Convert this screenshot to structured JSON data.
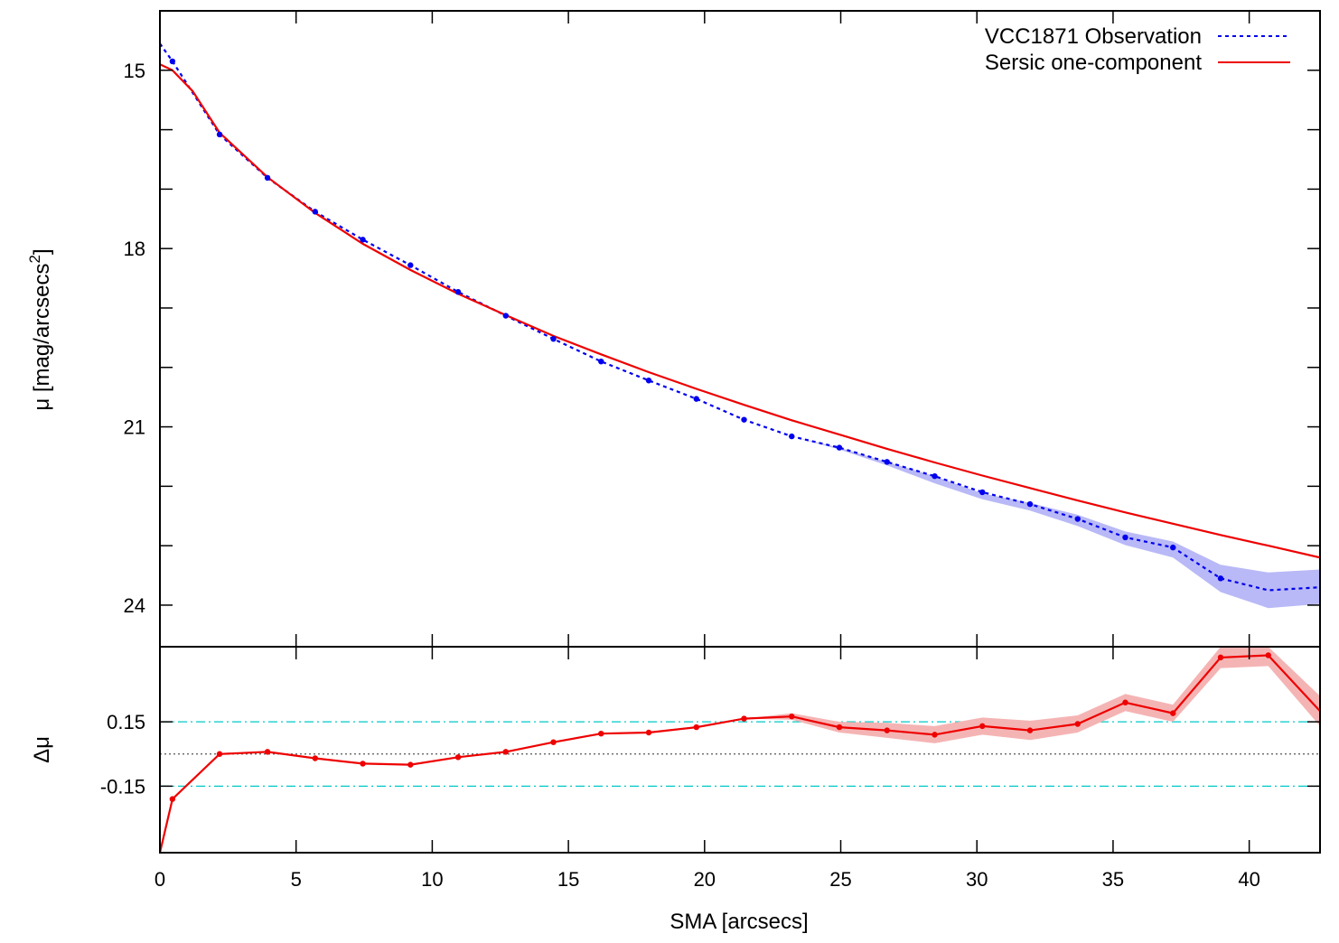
{
  "chart_data": [
    {
      "type": "line",
      "panel": "top",
      "ylabel": "μ [mag/arcsecs",
      "ylabel_sup": "2",
      "ylabel_tail": "]",
      "ylim": [
        24.7,
        14.0
      ],
      "y_inverted": true,
      "xlim": [
        0,
        42.6
      ],
      "yticks_labeled": [
        "15",
        "18",
        "21",
        "24"
      ],
      "ytick_values_labeled": [
        15,
        18,
        21,
        24
      ],
      "ytick_values_minor": [
        16,
        17,
        19,
        20,
        22,
        23
      ],
      "legend_position": "top-right",
      "series": [
        {
          "name": "VCC1871 Observation",
          "style": "dotted",
          "color": "#0000ee",
          "band_color": "#b9b9f7",
          "x": [
            0,
            0.46,
            2.19,
            3.95,
            5.7,
            7.45,
            9.2,
            10.95,
            12.7,
            14.45,
            16.2,
            17.95,
            19.7,
            21.45,
            23.2,
            24.95,
            26.7,
            28.45,
            30.2,
            31.95,
            33.7,
            35.45,
            37.2,
            38.95,
            40.7,
            42.6
          ],
          "values": [
            14.55,
            14.85,
            16.08,
            16.81,
            17.38,
            17.85,
            18.28,
            18.73,
            19.13,
            19.52,
            19.9,
            20.22,
            20.53,
            20.88,
            21.16,
            21.35,
            21.59,
            21.83,
            22.1,
            22.3,
            22.55,
            22.86,
            23.03,
            23.55,
            23.75,
            23.7
          ],
          "band_low": [
            14.55,
            14.85,
            16.08,
            16.81,
            17.38,
            17.85,
            18.28,
            18.73,
            19.13,
            19.52,
            19.9,
            20.22,
            20.53,
            20.88,
            21.16,
            21.35,
            21.59,
            21.83,
            22.12,
            22.28,
            22.48,
            22.76,
            22.93,
            23.32,
            23.45,
            23.4
          ],
          "band_high": [
            14.55,
            14.85,
            16.08,
            16.81,
            17.38,
            17.85,
            18.28,
            18.73,
            19.13,
            19.52,
            19.9,
            20.22,
            20.53,
            20.88,
            21.16,
            21.38,
            21.65,
            21.95,
            22.22,
            22.41,
            22.67,
            22.99,
            23.2,
            23.78,
            24.05,
            23.98
          ],
          "markers": true
        },
        {
          "name": "Sersic one-component",
          "style": "solid",
          "color": "#ee0000",
          "x": [
            0,
            0.46,
            1.2,
            2.19,
            3.95,
            5.7,
            7.45,
            9.2,
            10.95,
            12.7,
            14.45,
            16.2,
            17.95,
            19.7,
            21.45,
            23.2,
            24.95,
            26.7,
            28.45,
            30.2,
            31.95,
            33.7,
            35.45,
            37.2,
            38.95,
            40.7,
            42.6
          ],
          "values": [
            14.9,
            15.0,
            15.35,
            16.05,
            16.8,
            17.4,
            17.92,
            18.36,
            18.76,
            19.12,
            19.47,
            19.78,
            20.08,
            20.36,
            20.63,
            20.89,
            21.13,
            21.37,
            21.6,
            21.82,
            22.03,
            22.24,
            22.44,
            22.63,
            22.82,
            23.0,
            23.2
          ]
        }
      ]
    },
    {
      "type": "line",
      "panel": "bottom",
      "ylabel": "Δμ",
      "xlabel": "SMA [arcsecs]",
      "xlim": [
        0,
        42.6
      ],
      "ylim": [
        -0.46,
        0.5
      ],
      "xticks": [
        "0",
        "5",
        "10",
        "15",
        "20",
        "25",
        "30",
        "35",
        "40"
      ],
      "xtick_values": [
        0,
        5,
        10,
        15,
        20,
        25,
        30,
        35,
        40
      ],
      "yticks_labeled": [
        "0.15",
        "-0.15"
      ],
      "ytick_values_labeled": [
        0.15,
        -0.15
      ],
      "reference_lines": [
        {
          "y": 0.15,
          "style": "dash-dot",
          "color": "#00c8c8"
        },
        {
          "y": -0.15,
          "style": "dash-dot",
          "color": "#00c8c8"
        },
        {
          "y": 0,
          "style": "dotted",
          "color": "#555555"
        }
      ],
      "series": [
        {
          "style": "solid",
          "color": "#ee0000",
          "band_color": "#f5b4b4",
          "x": [
            0,
            0.46,
            2.19,
            3.95,
            5.7,
            7.45,
            9.2,
            10.95,
            12.7,
            14.45,
            16.2,
            17.95,
            19.7,
            21.45,
            23.2,
            24.95,
            26.7,
            28.45,
            30.2,
            31.95,
            33.7,
            35.45,
            37.2,
            38.95,
            40.7,
            42.6
          ],
          "values": [
            -0.46,
            -0.21,
            0.0,
            0.01,
            -0.02,
            -0.045,
            -0.05,
            -0.015,
            0.01,
            0.055,
            0.095,
            0.1,
            0.125,
            0.165,
            0.175,
            0.125,
            0.11,
            0.09,
            0.13,
            0.11,
            0.14,
            0.24,
            0.19,
            0.45,
            0.46,
            0.2
          ],
          "band_low": [
            -0.46,
            -0.21,
            0.0,
            0.01,
            -0.02,
            -0.045,
            -0.05,
            -0.015,
            0.01,
            0.055,
            0.095,
            0.1,
            0.125,
            0.165,
            0.16,
            0.1,
            0.075,
            0.05,
            0.09,
            0.065,
            0.1,
            0.2,
            0.15,
            0.4,
            0.41,
            0.13
          ],
          "band_high": [
            -0.46,
            -0.21,
            0.0,
            0.01,
            -0.02,
            -0.045,
            -0.05,
            -0.015,
            0.01,
            0.055,
            0.095,
            0.1,
            0.125,
            0.165,
            0.19,
            0.15,
            0.145,
            0.13,
            0.17,
            0.155,
            0.18,
            0.28,
            0.23,
            0.5,
            0.5,
            0.27
          ],
          "markers": true
        }
      ]
    }
  ]
}
